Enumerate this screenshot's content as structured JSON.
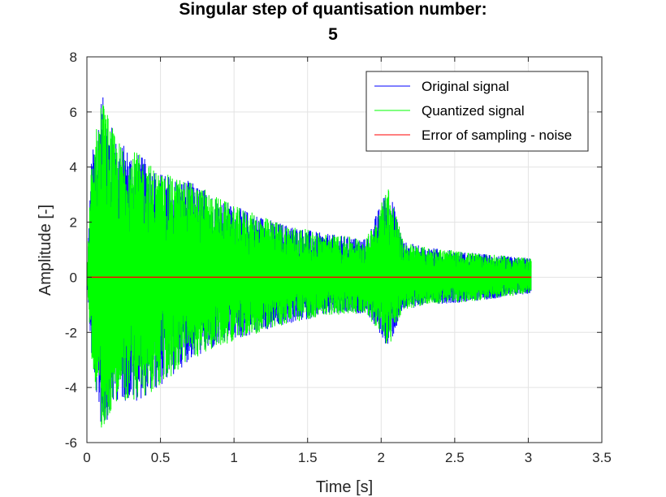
{
  "chart_data": {
    "type": "line",
    "title_lines": [
      "Singular step of quantisation number:",
      "5"
    ],
    "xlabel": "Time [s]",
    "ylabel": "Amplitude [-]",
    "xlim": [
      0,
      3.5
    ],
    "ylim": [
      -6,
      8
    ],
    "x_ticks": [
      "0",
      "0.5",
      "1",
      "1.5",
      "2",
      "2.5",
      "3",
      "3.5"
    ],
    "y_ticks": [
      "-6",
      "-4",
      "-2",
      "0",
      "2",
      "4",
      "6",
      "8"
    ],
    "grid": true,
    "legend_position": "top-right",
    "series": [
      {
        "name": "Original signal",
        "color": "#0000ff",
        "x_range": [
          0,
          3.02
        ],
        "envelope": {
          "x": [
            0,
            0.03,
            0.1,
            0.2,
            0.35,
            0.5,
            0.7,
            1.0,
            1.3,
            1.6,
            1.9,
            2.05,
            2.15,
            2.3,
            2.6,
            3.0
          ],
          "max": [
            0,
            4.3,
            6.7,
            5.0,
            4.5,
            3.8,
            3.5,
            2.6,
            2.0,
            1.6,
            1.4,
            3.4,
            1.3,
            1.1,
            0.9,
            0.7
          ],
          "min": [
            0,
            -2.9,
            -5.6,
            -4.5,
            -4.5,
            -4.0,
            -3.0,
            -2.3,
            -1.8,
            -1.4,
            -1.3,
            -2.6,
            -1.2,
            -1.0,
            -0.9,
            -0.6
          ]
        }
      },
      {
        "name": "Quantized signal",
        "color": "#00ff00",
        "x_range": [
          0,
          3.02
        ],
        "envelope": {
          "x": [
            0,
            0.03,
            0.1,
            0.2,
            0.35,
            0.5,
            0.7,
            1.0,
            1.3,
            1.6,
            1.9,
            2.05,
            2.15,
            2.3,
            2.6,
            3.0
          ],
          "max": [
            0,
            4.3,
            6.7,
            5.0,
            4.5,
            3.8,
            3.5,
            2.6,
            2.0,
            1.6,
            1.4,
            3.4,
            1.3,
            1.1,
            0.9,
            0.7
          ],
          "min": [
            0,
            -2.9,
            -5.6,
            -4.5,
            -4.5,
            -4.0,
            -3.0,
            -2.3,
            -1.8,
            -1.4,
            -1.3,
            -2.6,
            -1.2,
            -1.0,
            -0.9,
            -0.6
          ]
        }
      },
      {
        "name": "Error of sampling - noise",
        "color": "#ff0000",
        "x": [
          0,
          3.02
        ],
        "y": [
          0,
          0
        ]
      }
    ]
  }
}
